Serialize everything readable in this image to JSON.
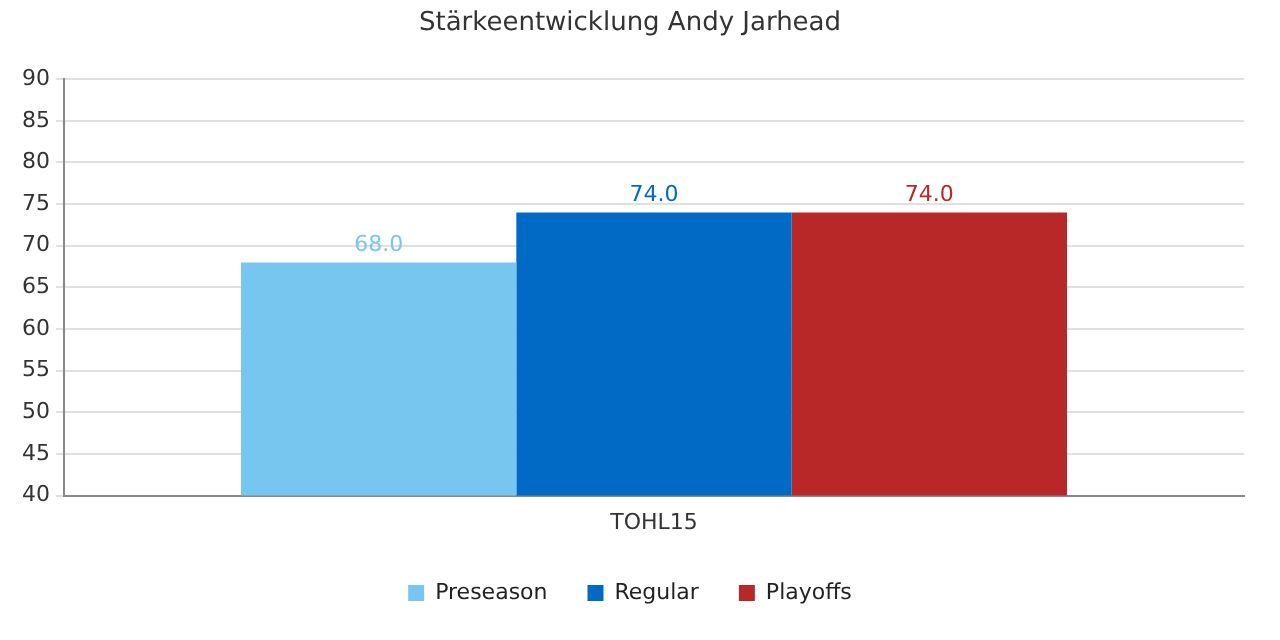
{
  "chart_data": {
    "type": "bar",
    "title": "Stärkeentwicklung Andy Jarhead",
    "categories": [
      "TOHL15"
    ],
    "series": [
      {
        "name": "Preseason",
        "color": "#77c6f0",
        "values": [
          68
        ],
        "value_labels": [
          "68.0"
        ]
      },
      {
        "name": "Regular",
        "color": "#016ac4",
        "values": [
          74
        ],
        "value_labels": [
          "74.0"
        ]
      },
      {
        "name": "Playoffs",
        "color": "#b92828",
        "values": [
          74
        ],
        "value_labels": [
          "74.0"
        ]
      }
    ],
    "ylim": [
      40,
      90
    ],
    "yticks": [
      40,
      45,
      50,
      55,
      60,
      65,
      70,
      75,
      80,
      85,
      90
    ],
    "grid": "y",
    "legend": "bottom"
  }
}
